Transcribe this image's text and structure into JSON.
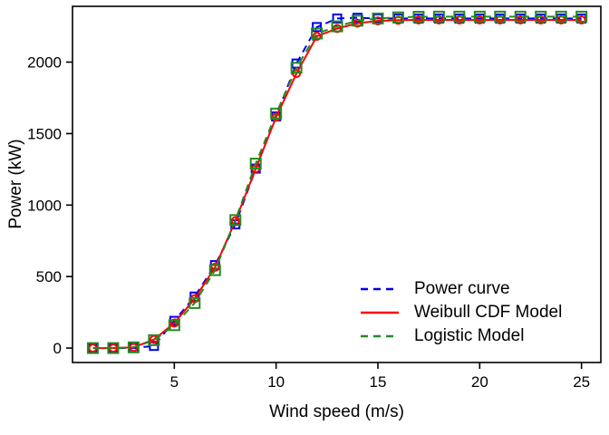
{
  "chart_data": {
    "type": "line",
    "title": "",
    "xlabel": "Wind speed (m/s)",
    "ylabel": "Power (kW)",
    "grid": false,
    "legend_position": "bottom-right",
    "x_ticks": [
      "5",
      "10",
      "15",
      "20",
      "25"
    ],
    "y_ticks": [
      "0",
      "500",
      "1000",
      "1500",
      "2000"
    ],
    "x_tick_values": [
      5,
      10,
      15,
      20,
      25
    ],
    "y_tick_values": [
      0,
      500,
      1000,
      1500,
      2000
    ],
    "x_range": [
      0,
      25.95
    ],
    "y_range": [
      -101,
      2390
    ],
    "x": [
      1,
      2,
      3,
      4,
      5,
      6,
      7,
      8,
      9,
      10,
      11,
      12,
      13,
      14,
      15,
      16,
      17,
      18,
      19,
      20,
      21,
      22,
      23,
      24,
      25
    ],
    "series": [
      {
        "name": "Power curve",
        "color": "#0000ee",
        "line": "dashed",
        "marker": "square",
        "marker_size": 9,
        "values": [
          0,
          0,
          0,
          15,
          190,
          360,
          580,
          865,
          1255,
          1620,
          1990,
          2245,
          2305,
          2310,
          2305,
          2305,
          2305,
          2305,
          2305,
          2305,
          2305,
          2305,
          2305,
          2305,
          2305
        ]
      },
      {
        "name": "Weibull CDF Model",
        "color": "#ff0000",
        "line": "solid",
        "marker": "circle",
        "marker_size": 9,
        "values": [
          0,
          0,
          5,
          60,
          175,
          345,
          565,
          890,
          1255,
          1615,
          1920,
          2180,
          2235,
          2272,
          2288,
          2293,
          2295,
          2295,
          2295,
          2295,
          2295,
          2295,
          2295,
          2295,
          2295
        ]
      },
      {
        "name": "Logistic Model",
        "color": "#228b22",
        "line": "dashed",
        "marker": "square",
        "marker_size": 11,
        "values": [
          0,
          0,
          5,
          55,
          160,
          315,
          545,
          895,
          1290,
          1640,
          1960,
          2200,
          2250,
          2290,
          2305,
          2313,
          2317,
          2318,
          2318,
          2318,
          2318,
          2318,
          2318,
          2318,
          2318
        ]
      }
    ]
  },
  "axes": {
    "x_title": "Wind speed (m/s)",
    "y_title": "Power (kW)"
  },
  "style": {
    "axis_color": "#000000",
    "background": "#ffffff",
    "line_width": 2
  }
}
